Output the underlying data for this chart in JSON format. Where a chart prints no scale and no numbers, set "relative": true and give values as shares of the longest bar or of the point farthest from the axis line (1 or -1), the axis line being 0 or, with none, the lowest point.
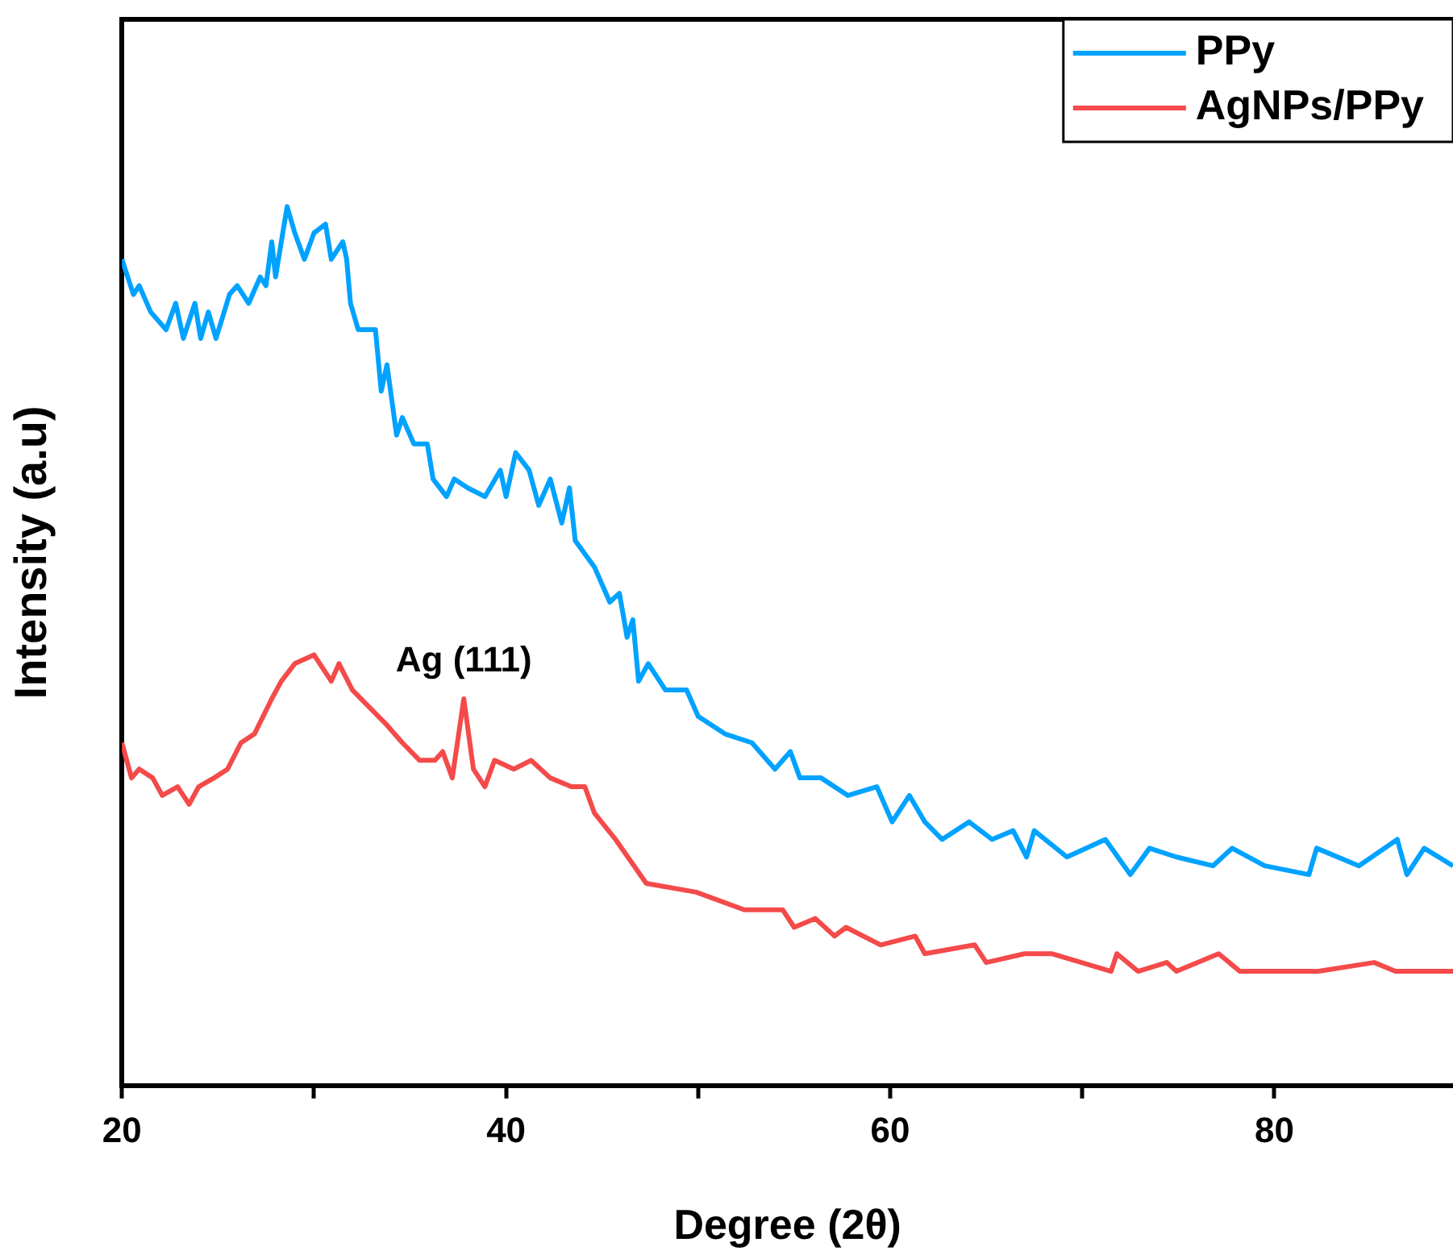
{
  "chart_data": {
    "type": "line",
    "relative": true,
    "xlabel": "Degree (2θ)",
    "ylabel": "Intensity (a.u)",
    "xlim": [
      20,
      89.3
    ],
    "xticks": [
      20,
      {
        "value": 30,
        "label": null
      },
      40,
      {
        "value": 50,
        "label": null
      },
      60,
      {
        "value": 70,
        "label": null
      },
      80
    ],
    "legend": "top right",
    "marker": "none",
    "line_style": "solid",
    "grid": false,
    "annotations": [
      {
        "text": "Ag (111)",
        "x": 37.8,
        "y": 0.44
      }
    ],
    "series": [
      {
        "name": "PPy",
        "color": "#00a2ff",
        "x": [
          20.0,
          20.6,
          20.9,
          21.5,
          22.3,
          22.8,
          23.2,
          23.8,
          24.1,
          24.5,
          24.9,
          25.6,
          26.0,
          26.6,
          27.2,
          27.5,
          27.8,
          28.0,
          28.6,
          29.0,
          29.5,
          30.0,
          30.6,
          30.9,
          31.5,
          31.7,
          31.9,
          32.3,
          32.7,
          33.2,
          33.5,
          33.8,
          34.3,
          34.6,
          35.2,
          35.9,
          36.2,
          36.9,
          37.3,
          38.0,
          38.9,
          39.7,
          40.0,
          40.5,
          41.2,
          41.7,
          42.3,
          42.9,
          43.3,
          43.6,
          44.6,
          45.4,
          45.9,
          46.3,
          46.6,
          46.9,
          47.4,
          48.3,
          49.4,
          50.0,
          51.4,
          52.8,
          54.0,
          54.8,
          55.3,
          56.4,
          57.8,
          59.3,
          60.1,
          61.0,
          61.8,
          62.7,
          64.1,
          65.3,
          66.4,
          67.1,
          67.5,
          69.2,
          71.2,
          72.5,
          73.5,
          74.9,
          76.8,
          77.8,
          79.5,
          81.8,
          82.2,
          84.4,
          86.4,
          86.9,
          87.8,
          89.3
        ],
        "values": [
          0.94,
          0.9,
          0.91,
          0.88,
          0.86,
          0.89,
          0.85,
          0.89,
          0.85,
          0.88,
          0.85,
          0.9,
          0.91,
          0.89,
          0.92,
          0.91,
          0.96,
          0.92,
          1.0,
          0.97,
          0.94,
          0.97,
          0.98,
          0.94,
          0.96,
          0.94,
          0.89,
          0.86,
          0.86,
          0.86,
          0.79,
          0.82,
          0.74,
          0.76,
          0.73,
          0.73,
          0.69,
          0.67,
          0.69,
          0.68,
          0.67,
          0.7,
          0.67,
          0.72,
          0.7,
          0.66,
          0.69,
          0.64,
          0.68,
          0.62,
          0.59,
          0.55,
          0.56,
          0.51,
          0.53,
          0.46,
          0.48,
          0.45,
          0.45,
          0.42,
          0.4,
          0.39,
          0.36,
          0.38,
          0.35,
          0.35,
          0.33,
          0.34,
          0.3,
          0.33,
          0.3,
          0.28,
          0.3,
          0.28,
          0.29,
          0.26,
          0.29,
          0.26,
          0.28,
          0.24,
          0.27,
          0.26,
          0.25,
          0.27,
          0.25,
          0.24,
          0.27,
          0.25,
          0.28,
          0.24,
          0.27,
          0.25
        ]
      },
      {
        "name": "AgNPs/PPy",
        "color": "#f44a4a",
        "x": [
          20.0,
          20.5,
          20.9,
          21.6,
          22.1,
          22.9,
          23.5,
          24.0,
          24.8,
          25.5,
          26.2,
          26.9,
          27.8,
          28.3,
          29.0,
          30.0,
          30.9,
          31.3,
          32.0,
          32.9,
          33.8,
          34.6,
          35.5,
          36.3,
          36.7,
          37.2,
          37.8,
          38.3,
          38.9,
          39.4,
          40.4,
          41.3,
          42.3,
          43.4,
          44.1,
          44.6,
          45.7,
          47.3,
          49.9,
          52.4,
          53.3,
          54.4,
          55.0,
          56.1,
          57.1,
          57.7,
          59.5,
          61.3,
          61.8,
          64.4,
          65.0,
          67.0,
          68.4,
          71.5,
          71.8,
          72.9,
          74.4,
          74.9,
          77.1,
          78.2,
          79.2,
          80.6,
          82.3,
          85.2,
          86.3,
          87.5,
          89.3
        ],
        "values": [
          0.39,
          0.35,
          0.36,
          0.35,
          0.33,
          0.34,
          0.32,
          0.34,
          0.35,
          0.36,
          0.39,
          0.4,
          0.44,
          0.46,
          0.48,
          0.49,
          0.46,
          0.48,
          0.45,
          0.43,
          0.41,
          0.39,
          0.37,
          0.37,
          0.38,
          0.35,
          0.44,
          0.36,
          0.34,
          0.37,
          0.36,
          0.37,
          0.35,
          0.34,
          0.34,
          0.31,
          0.28,
          0.23,
          0.22,
          0.2,
          0.2,
          0.2,
          0.18,
          0.19,
          0.17,
          0.18,
          0.16,
          0.17,
          0.15,
          0.16,
          0.14,
          0.15,
          0.15,
          0.13,
          0.15,
          0.13,
          0.14,
          0.13,
          0.15,
          0.13,
          0.13,
          0.13,
          0.13,
          0.14,
          0.13,
          0.13,
          0.13
        ]
      }
    ]
  }
}
